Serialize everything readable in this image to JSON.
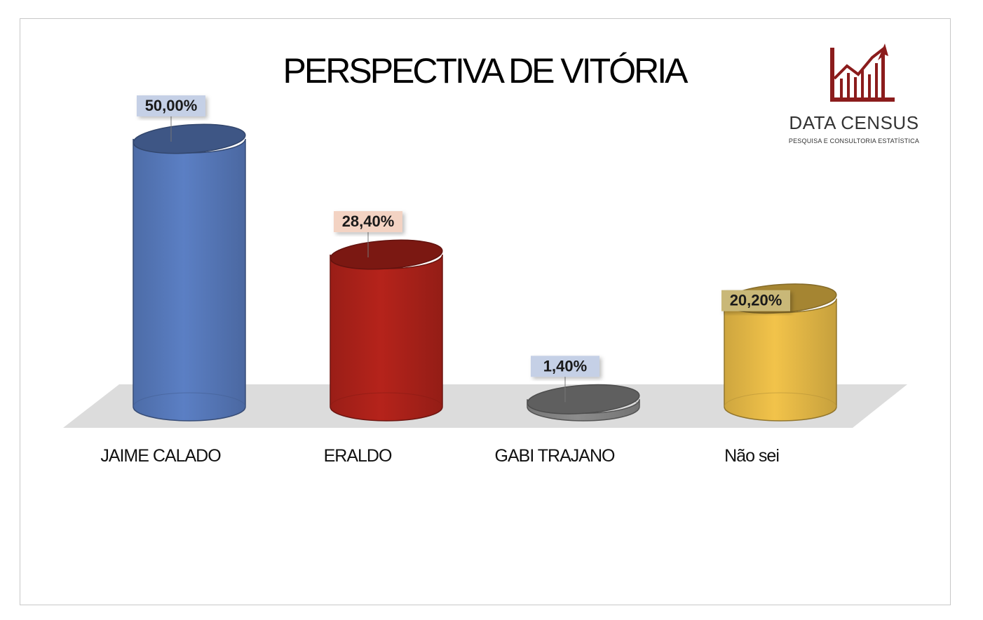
{
  "chart_data": {
    "type": "bar",
    "title": "PERSPECTIVA DE VITÓRIA",
    "categories": [
      "JAIME CALADO",
      "ERALDO",
      "GABI TRAJANO",
      "Não sei"
    ],
    "values": [
      50.0,
      28.4,
      1.4,
      20.2
    ],
    "data_labels": [
      "50,00%",
      "28,40%",
      "1,40%",
      "20,20%"
    ],
    "unit": "%",
    "ylim": [
      0,
      50
    ],
    "grid": false,
    "legend": "none",
    "style": "3d-cylinder",
    "colors": [
      "#5b7fc4",
      "#b5231b",
      "#8c8c8c",
      "#f2c34a"
    ],
    "label_bg_colors": [
      "#c5d0e6",
      "#f3d3c3",
      "#c5d0e6",
      "#c9b878"
    ]
  },
  "branding": {
    "name": "DATA CENSUS",
    "tagline": "PESQUISA E CONSULTORIA ESTATÍSTICA",
    "logo_icon": "bar-chart-trend-arrow-icon",
    "logo_color": "#8b1c1c"
  }
}
